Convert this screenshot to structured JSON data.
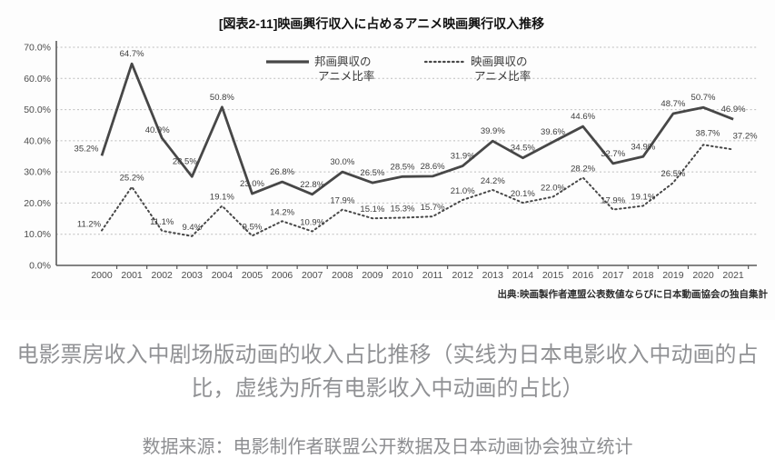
{
  "chart": {
    "title": "[図表2-11]映画興行収入に占めるアニメ映画興行収入推移",
    "source_note": "出典:映画製作者連盟公表数値ならびに日本動画協会の独自集計",
    "colors": {
      "line": "#474747",
      "grid": "#bdbdbd",
      "axis": "#5a5a5a",
      "tick_label": "#4c4c4c",
      "data_label": "#3d3d3d",
      "title": "#121212",
      "legend_text": "#3a3a3a"
    }
  },
  "chart_data": {
    "type": "line",
    "title": "[図表2-11]映画興行収入に占めるアニメ映画興行収入推移",
    "categories": [
      "2000",
      "2001",
      "2002",
      "2003",
      "2004",
      "2005",
      "2006",
      "2007",
      "2008",
      "2009",
      "2010",
      "2011",
      "2012",
      "2013",
      "2014",
      "2015",
      "2016",
      "2017",
      "2018",
      "2019",
      "2020",
      "2021"
    ],
    "series": [
      {
        "name": "邦画興収のアニメ比率",
        "legend_lines": [
          "邦画興収の",
          "アニメ比率"
        ],
        "style": "solid",
        "values": [
          35.2,
          64.7,
          40.9,
          28.5,
          50.8,
          23.0,
          26.8,
          22.8,
          30.0,
          26.5,
          28.5,
          28.6,
          31.9,
          39.9,
          34.5,
          39.6,
          44.6,
          32.7,
          34.9,
          48.7,
          50.7,
          46.9
        ]
      },
      {
        "name": "映画興収のアニメ比率",
        "legend_lines": [
          "映画興収の",
          "アニメ比率"
        ],
        "style": "dotted",
        "values": [
          11.2,
          25.2,
          11.1,
          9.4,
          19.1,
          9.5,
          14.2,
          10.9,
          17.9,
          15.1,
          15.3,
          15.7,
          21.0,
          24.2,
          20.1,
          22.0,
          28.2,
          17.9,
          19.1,
          26.5,
          38.7,
          37.2
        ]
      }
    ],
    "ylim": [
      0,
      70
    ],
    "yticks": [
      0,
      10,
      20,
      30,
      40,
      50,
      60,
      70
    ],
    "ytick_suffix": ".0%",
    "grid": "horizontal-dotted",
    "legend_position": "top-center",
    "data_labels": "all-points",
    "source_note": "出典:映画製作者連盟公表数値ならびに日本動画協会の独自集計"
  },
  "caption": {
    "line1": "电影票房收入中剧场版动画的收入占比推移（实线为日本电影收入中动画的占",
    "line2": "比，虚线为所有电影收入中动画的占比）",
    "source": "数据来源：电影制作者联盟公开数据及日本动画协会独立统计"
  }
}
